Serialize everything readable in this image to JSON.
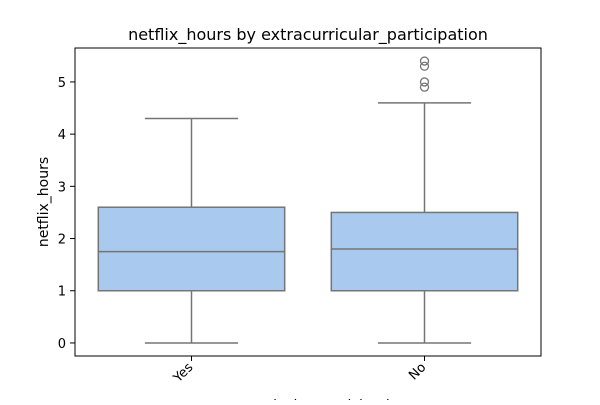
{
  "chart_data": {
    "type": "box",
    "title": "netflix_hours by extracurricular_participation",
    "xlabel": "extracurricular_participation",
    "ylabel": "netflix_hours",
    "categories": [
      "Yes",
      "No"
    ],
    "boxes": [
      {
        "category": "Yes",
        "whisker_low": 0.0,
        "q1": 1.0,
        "median": 1.75,
        "q3": 2.6,
        "whisker_high": 4.3,
        "outliers": []
      },
      {
        "category": "No",
        "whisker_low": 0.0,
        "q1": 1.0,
        "median": 1.8,
        "q3": 2.5,
        "whisker_high": 4.6,
        "outliers": [
          4.9,
          5.0,
          5.3,
          5.4
        ]
      }
    ],
    "yticks": [
      0,
      1,
      2,
      3,
      4,
      5
    ],
    "ylim": [
      -0.25,
      5.65
    ],
    "grid": false,
    "legend": "none",
    "colors": {
      "box_fill": "#a9c9ee",
      "line": "#757575",
      "axis": "#000000"
    }
  }
}
